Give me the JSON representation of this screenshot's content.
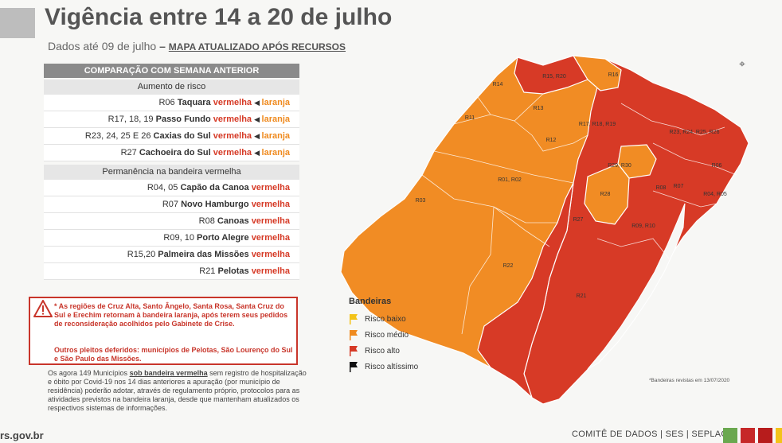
{
  "header": {
    "title": "Vigência entre 14 a 20 de julho",
    "subtitle_prefix": "Dados até 09 de julho",
    "subtitle_dash": "–",
    "subtitle_highlight": "MAPA ATUALIZADO APÓS RECURSOS"
  },
  "comparison": {
    "title": "COMPARAÇÃO COM SEMANA ANTERIOR",
    "increase_title": "Aumento de risco",
    "increase_rows": [
      {
        "code": "R06",
        "city": "Taquara",
        "from": "vermelha",
        "to": "laranja"
      },
      {
        "code": "R17, 18, 19",
        "city": "Passo Fundo",
        "from": "vermelha",
        "to": "laranja"
      },
      {
        "code": "R23, 24, 25 E 26",
        "city": "Caxias do Sul",
        "from": "vermelha",
        "to": "laranja"
      },
      {
        "code": "R27",
        "city": "Cachoeira do Sul",
        "from": "vermelha",
        "to": "laranja"
      }
    ],
    "permanence_title": "Permanência na bandeira vermelha",
    "permanence_rows": [
      {
        "code": "R04, 05",
        "city": "Capão da Canoa",
        "flag": "vermelha"
      },
      {
        "code": "R07",
        "city": "Novo Hamburgo",
        "flag": "vermelha"
      },
      {
        "code": "R08",
        "city": "Canoas",
        "flag": "vermelha"
      },
      {
        "code": "R09, 10",
        "city": "Porto Alegre",
        "flag": "vermelha"
      },
      {
        "code": "R15,20",
        "city": "Palmeira das Missões",
        "flag": "vermelha"
      },
      {
        "code": "R21",
        "city": "Pelotas",
        "flag": "vermelha"
      }
    ]
  },
  "notes": {
    "note1": "* As regiões de Cruz Alta, Santo Ângelo, Santa Rosa, Santa Cruz do Sul e Erechim retornam à bandeira laranja, após terem seus pedidos de reconsideração acolhidos pelo Gabinete de Crise.",
    "note2": "Outros pleitos deferidos: municípios de Pelotas, São Lourenço do Sul e São Paulo das Missões."
  },
  "footnote": {
    "part1": "Os agora 149 Municípios",
    "underlined": "sob bandeira vermelha",
    "part2": "sem registro de hospitalização e óbito por Covid-19 nos 14 dias anteriores a apuração (por município de residência) poderão adotar, através de regulamento próprio, protocolos para as atividades previstos na bandeira laranja, desde que mantenham atualizados os respectivos sistemas de informações."
  },
  "legend": {
    "title": "Bandeiras",
    "items": [
      {
        "label": "Risco baixo",
        "color": "#f3c319",
        "icon": "flag-yellow-icon"
      },
      {
        "label": "Risco médio",
        "color": "#ef8a1e",
        "icon": "flag-orange-icon"
      },
      {
        "label": "Risco alto",
        "color": "#d63a26",
        "icon": "flag-red-icon"
      },
      {
        "label": "Risco altíssimo",
        "color": "#111111",
        "icon": "flag-black-icon"
      }
    ]
  },
  "map": {
    "orange_color": "#f18c24",
    "red_color": "#d73a26",
    "labels": [
      "R14",
      "R15, R20",
      "R16",
      "R13",
      "R11",
      "R12",
      "R17, R18, R19",
      "R23, R24, R25, R26",
      "R01, R02",
      "R03",
      "R29, R30",
      "R06",
      "R28",
      "R08",
      "R07",
      "R04, R05",
      "R27",
      "R09, R10",
      "R22",
      "R21"
    ],
    "revised": "*Bandeiras revistas em 13/07/2020"
  },
  "footer": {
    "domain": "rs.gov.br",
    "comite": "COMITÊ DE DADOS | SES | SEPLAG",
    "squares": [
      "#6aa84f",
      "#c62828",
      "#b71c1c",
      "#f3c319",
      "#c62828"
    ]
  }
}
